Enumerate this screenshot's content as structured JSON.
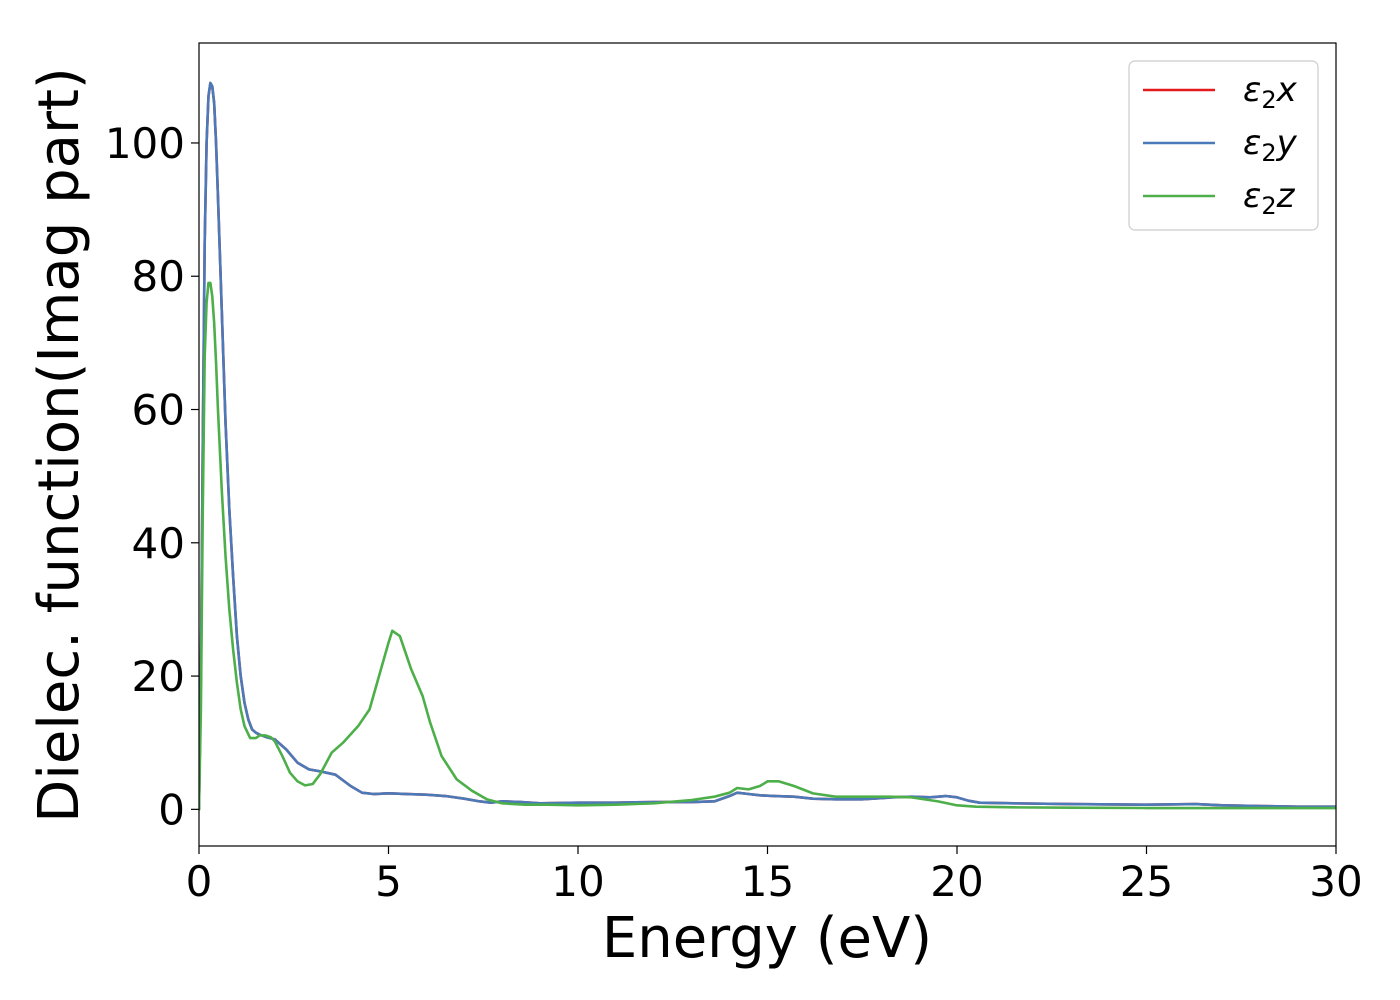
{
  "chart_data": {
    "type": "line",
    "xlabel": "Energy (eV)",
    "ylabel": "Dielec. function(Imag part)",
    "xlim": [
      0,
      30
    ],
    "ylim": [
      -5.5,
      115
    ],
    "xticks": [
      0,
      5,
      10,
      15,
      20,
      25,
      30
    ],
    "yticks": [
      0,
      20,
      40,
      60,
      80,
      100
    ],
    "grid": false,
    "legend_position": "top-right",
    "series": [
      {
        "name": "ε2x",
        "legend_main": "ε",
        "legend_sub": "2",
        "legend_suffix": "x",
        "color": "#e41a1c",
        "x": [
          0,
          0.05,
          0.1,
          0.15,
          0.2,
          0.25,
          0.3,
          0.35,
          0.4,
          0.45,
          0.5,
          0.6,
          0.7,
          0.8,
          0.9,
          1.0,
          1.1,
          1.2,
          1.3,
          1.4,
          1.5,
          1.6,
          1.8,
          2.0,
          2.3,
          2.6,
          2.9,
          3.2,
          3.6,
          4.0,
          4.3,
          4.6,
          5.0,
          5.5,
          6.0,
          6.5,
          7.0,
          7.4,
          7.7,
          8.0,
          8.5,
          9.0,
          10,
          11,
          12,
          13,
          13.6,
          14.0,
          14.2,
          14.5,
          14.8,
          15.2,
          15.7,
          16.2,
          16.8,
          17.5,
          18.3,
          18.8,
          19.3,
          19.7,
          20.0,
          20.3,
          20.6,
          21.5,
          23,
          25,
          26.3,
          27,
          28,
          29,
          30
        ],
        "values": [
          0,
          20,
          55,
          85,
          100,
          107,
          109,
          108.5,
          106,
          100,
          92,
          75,
          58,
          45,
          35,
          26,
          20,
          16,
          13.5,
          12,
          11.5,
          11.2,
          10.8,
          10.5,
          9,
          7,
          6,
          5.7,
          5.2,
          3.5,
          2.5,
          2.3,
          2.4,
          2.3,
          2.2,
          2,
          1.6,
          1.2,
          1,
          1.2,
          1.1,
          0.9,
          1,
          1,
          1.1,
          1.1,
          1.2,
          2,
          2.5,
          2.3,
          2.1,
          2.0,
          1.9,
          1.6,
          1.5,
          1.5,
          1.8,
          1.9,
          1.8,
          2.0,
          1.8,
          1.3,
          1,
          0.9,
          0.8,
          0.7,
          0.8,
          0.6,
          0.5,
          0.4,
          0.4
        ]
      },
      {
        "name": "ε2y",
        "legend_main": "ε",
        "legend_sub": "2",
        "legend_suffix": "y",
        "color": "#4a7ab8",
        "x": [
          0,
          0.05,
          0.1,
          0.15,
          0.2,
          0.25,
          0.3,
          0.35,
          0.4,
          0.45,
          0.5,
          0.6,
          0.7,
          0.8,
          0.9,
          1.0,
          1.1,
          1.2,
          1.3,
          1.4,
          1.5,
          1.6,
          1.8,
          2.0,
          2.3,
          2.6,
          2.9,
          3.2,
          3.6,
          4.0,
          4.3,
          4.6,
          5.0,
          5.5,
          6.0,
          6.5,
          7.0,
          7.4,
          7.7,
          8.0,
          8.5,
          9.0,
          10,
          11,
          12,
          13,
          13.6,
          14.0,
          14.2,
          14.5,
          14.8,
          15.2,
          15.7,
          16.2,
          16.8,
          17.5,
          18.3,
          18.8,
          19.3,
          19.7,
          20.0,
          20.3,
          20.6,
          21.5,
          23,
          25,
          26.3,
          27,
          28,
          29,
          30
        ],
        "values": [
          0,
          20,
          55,
          85,
          100,
          107,
          109,
          108.5,
          106,
          100,
          92,
          75,
          58,
          45,
          35,
          26,
          20,
          16,
          13.5,
          12,
          11.5,
          11.2,
          10.8,
          10.5,
          9,
          7,
          6,
          5.7,
          5.2,
          3.5,
          2.5,
          2.3,
          2.4,
          2.3,
          2.2,
          2,
          1.6,
          1.2,
          1,
          1.2,
          1.1,
          0.9,
          1,
          1,
          1.1,
          1.1,
          1.2,
          2,
          2.5,
          2.3,
          2.1,
          2.0,
          1.9,
          1.6,
          1.5,
          1.5,
          1.8,
          1.9,
          1.8,
          2.0,
          1.8,
          1.3,
          1,
          0.9,
          0.8,
          0.7,
          0.8,
          0.6,
          0.5,
          0.4,
          0.4
        ]
      },
      {
        "name": "ε2z",
        "legend_main": "ε",
        "legend_sub": "2",
        "legend_suffix": "z",
        "color": "#4daf4a",
        "x": [
          0,
          0.05,
          0.1,
          0.15,
          0.2,
          0.25,
          0.3,
          0.35,
          0.4,
          0.45,
          0.5,
          0.6,
          0.7,
          0.8,
          0.9,
          1.0,
          1.1,
          1.2,
          1.35,
          1.5,
          1.6,
          1.75,
          1.9,
          2.0,
          2.2,
          2.4,
          2.6,
          2.8,
          3.0,
          3.2,
          3.5,
          3.8,
          4.2,
          4.5,
          4.8,
          5.0,
          5.1,
          5.3,
          5.6,
          5.9,
          6.1,
          6.4,
          6.8,
          7.2,
          7.6,
          8.0,
          8.6,
          9.2,
          10,
          11,
          12,
          13,
          13.6,
          14.0,
          14.2,
          14.5,
          14.8,
          15.0,
          15.3,
          15.7,
          16.2,
          16.8,
          17.5,
          18.2,
          18.8,
          19.5,
          20.0,
          20.5,
          21.5,
          23,
          25,
          27,
          29,
          30
        ],
        "values": [
          0,
          15,
          45,
          68,
          76,
          79,
          79,
          77,
          73,
          67,
          60,
          48,
          38,
          30,
          24,
          19,
          15,
          12.5,
          10.7,
          10.7,
          11.1,
          11.1,
          10.8,
          10.2,
          8,
          5.5,
          4.2,
          3.6,
          3.8,
          5.3,
          8.5,
          10,
          12.5,
          15,
          21,
          25,
          26.8,
          26,
          21,
          17,
          13,
          8,
          4.5,
          2.8,
          1.5,
          0.9,
          0.7,
          0.7,
          0.6,
          0.7,
          0.9,
          1.4,
          1.9,
          2.5,
          3.2,
          3.0,
          3.5,
          4.2,
          4.2,
          3.5,
          2.4,
          1.9,
          1.9,
          1.9,
          1.8,
          1.2,
          0.6,
          0.4,
          0.3,
          0.25,
          0.2,
          0.2,
          0.2,
          0.2
        ]
      }
    ]
  }
}
